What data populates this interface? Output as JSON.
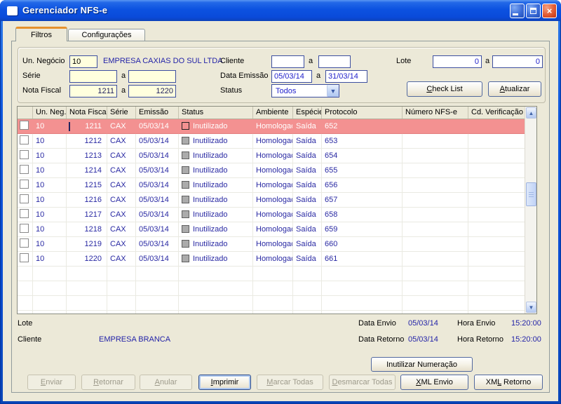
{
  "window": {
    "title": "Gerenciador NFS-e"
  },
  "tabs": [
    {
      "label": "Filtros"
    },
    {
      "label": "Configurações"
    }
  ],
  "filters": {
    "un_negocio": {
      "label": "Un. Negócio",
      "value": "10",
      "company": "EMPRESA CAXIAS DO SUL LTDA"
    },
    "serie": {
      "label": "Série",
      "from": "",
      "to": "",
      "connector": "a"
    },
    "nota_fiscal": {
      "label": "Nota Fiscal",
      "from": "1211",
      "to": "1220",
      "connector": "a"
    },
    "cliente": {
      "label": "Cliente",
      "from": "",
      "to": "",
      "connector": "a"
    },
    "data_emissao": {
      "label": "Data Emissão",
      "from": "05/03/14",
      "to": "31/03/14",
      "connector": "a"
    },
    "status": {
      "label": "Status",
      "value": "Todos"
    },
    "lote": {
      "label": "Lote",
      "from": "0",
      "to": "0",
      "connector": "a"
    },
    "check_list": {
      "text": "Check List",
      "accel": 0
    },
    "atualizar": {
      "text": "Atualizar",
      "accel": 0
    }
  },
  "table": {
    "columns": [
      "",
      "Un. Neg.",
      "Nota Fiscal",
      "Série",
      "Emissão",
      "Status",
      "Ambiente",
      "Espécie",
      "Protocolo",
      "Número NFS-e",
      "Cd. Verificação"
    ],
    "rows": [
      {
        "selected": true,
        "un_neg": "10",
        "nota_fiscal": "1211",
        "serie": "CAX",
        "emissao": "05/03/14",
        "status": "Inutilizado",
        "ambiente": "Homologação",
        "especie": "Saída",
        "protocolo": "652",
        "numero_nfse": "",
        "cd_verificacao": ""
      },
      {
        "selected": false,
        "un_neg": "10",
        "nota_fiscal": "1212",
        "serie": "CAX",
        "emissao": "05/03/14",
        "status": "Inutilizado",
        "ambiente": "Homologação",
        "especie": "Saída",
        "protocolo": "653",
        "numero_nfse": "",
        "cd_verificacao": ""
      },
      {
        "selected": false,
        "un_neg": "10",
        "nota_fiscal": "1213",
        "serie": "CAX",
        "emissao": "05/03/14",
        "status": "Inutilizado",
        "ambiente": "Homologação",
        "especie": "Saída",
        "protocolo": "654",
        "numero_nfse": "",
        "cd_verificacao": ""
      },
      {
        "selected": false,
        "un_neg": "10",
        "nota_fiscal": "1214",
        "serie": "CAX",
        "emissao": "05/03/14",
        "status": "Inutilizado",
        "ambiente": "Homologação",
        "especie": "Saída",
        "protocolo": "655",
        "numero_nfse": "",
        "cd_verificacao": ""
      },
      {
        "selected": false,
        "un_neg": "10",
        "nota_fiscal": "1215",
        "serie": "CAX",
        "emissao": "05/03/14",
        "status": "Inutilizado",
        "ambiente": "Homologação",
        "especie": "Saída",
        "protocolo": "656",
        "numero_nfse": "",
        "cd_verificacao": ""
      },
      {
        "selected": false,
        "un_neg": "10",
        "nota_fiscal": "1216",
        "serie": "CAX",
        "emissao": "05/03/14",
        "status": "Inutilizado",
        "ambiente": "Homologação",
        "especie": "Saída",
        "protocolo": "657",
        "numero_nfse": "",
        "cd_verificacao": ""
      },
      {
        "selected": false,
        "un_neg": "10",
        "nota_fiscal": "1217",
        "serie": "CAX",
        "emissao": "05/03/14",
        "status": "Inutilizado",
        "ambiente": "Homologação",
        "especie": "Saída",
        "protocolo": "658",
        "numero_nfse": "",
        "cd_verificacao": ""
      },
      {
        "selected": false,
        "un_neg": "10",
        "nota_fiscal": "1218",
        "serie": "CAX",
        "emissao": "05/03/14",
        "status": "Inutilizado",
        "ambiente": "Homologação",
        "especie": "Saída",
        "protocolo": "659",
        "numero_nfse": "",
        "cd_verificacao": ""
      },
      {
        "selected": false,
        "un_neg": "10",
        "nota_fiscal": "1219",
        "serie": "CAX",
        "emissao": "05/03/14",
        "status": "Inutilizado",
        "ambiente": "Homologação",
        "especie": "Saída",
        "protocolo": "660",
        "numero_nfse": "",
        "cd_verificacao": ""
      },
      {
        "selected": false,
        "un_neg": "10",
        "nota_fiscal": "1220",
        "serie": "CAX",
        "emissao": "05/03/14",
        "status": "Inutilizado",
        "ambiente": "Homologação",
        "especie": "Saída",
        "protocolo": "661",
        "numero_nfse": "",
        "cd_verificacao": ""
      }
    ]
  },
  "details": {
    "lote_label": "Lote",
    "cliente_label": "Cliente",
    "cliente_value": "EMPRESA BRANCA",
    "data_envio_label": "Data Envio",
    "data_envio": "05/03/14",
    "hora_envio_label": "Hora Envio",
    "hora_envio": "15:20:00",
    "data_retorno_label": "Data Retorno",
    "data_retorno": "05/03/14",
    "hora_retorno_label": "Hora Retorno",
    "hora_retorno": "15:20:00"
  },
  "actions": {
    "inutilizar": {
      "text": "Inutilizar Numeração",
      "accel": -1
    },
    "enviar": {
      "text": "Enviar",
      "accel": 0
    },
    "retornar": {
      "text": "Retornar",
      "accel": 0
    },
    "anular": {
      "text": "Anular",
      "accel": 0
    },
    "imprimir": {
      "text": "Imprimir",
      "accel": 0
    },
    "marcar": {
      "text": "Marcar Todas",
      "accel": 0
    },
    "desmarcar": {
      "text": "Desmarcar Todas",
      "accel": 0
    },
    "xml_envio": {
      "text": "XML Envio",
      "accel": 0
    },
    "xml_retorno": {
      "text": "XML Retorno",
      "accel": 2
    }
  },
  "colors": {
    "titlebar_blue": "#0C52E0",
    "selected_row_pink": "#F39191",
    "row_text_navy": "#2929A3",
    "input_cream": "#FFFFDE",
    "active_tab_orange": "#E5912D"
  }
}
